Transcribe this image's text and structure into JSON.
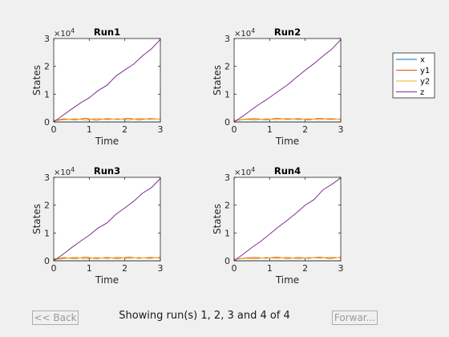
{
  "chart_data": [
    {
      "type": "line",
      "title": "Run1",
      "xlabel": "Time",
      "ylabel": "States",
      "xlim": [
        0,
        3
      ],
      "ylim": [
        0,
        30000
      ],
      "xticks": [
        "0",
        "1",
        "2",
        "3"
      ],
      "yticks": [
        "0",
        "1",
        "2",
        "3"
      ],
      "exponent_label": "×10",
      "exponent_power": "4",
      "grid": false,
      "series": [
        {
          "name": "x",
          "color": "#0072BD",
          "x": [
            0,
            0.5,
            1,
            1.5,
            2,
            2.5,
            3
          ],
          "y": [
            0,
            0,
            0,
            0,
            0,
            0,
            0
          ]
        },
        {
          "name": "y1",
          "color": "#D95319",
          "x": [
            0,
            0.3,
            0.6,
            0.9,
            1.2,
            1.5,
            1.8,
            2.1,
            2.4,
            2.7,
            3
          ],
          "y": [
            500,
            1100,
            800,
            1300,
            700,
            1200,
            900,
            1300,
            800,
            1200,
            1000
          ]
        },
        {
          "name": "y2",
          "color": "#EDB120",
          "x": [
            0,
            0.3,
            0.6,
            0.9,
            1.2,
            1.5,
            1.8,
            2.1,
            2.4,
            2.7,
            3
          ],
          "y": [
            400,
            800,
            1200,
            700,
            1300,
            800,
            1200,
            700,
            1300,
            900,
            1100
          ]
        },
        {
          "name": "z",
          "color": "#7E2F8E",
          "x": [
            0,
            0.25,
            0.5,
            0.75,
            1,
            1.25,
            1.5,
            1.75,
            2,
            2.25,
            2.5,
            2.75,
            3
          ],
          "y": [
            0,
            2300,
            4600,
            6800,
            8700,
            11300,
            13200,
            16500,
            18700,
            20800,
            23800,
            26300,
            29700
          ]
        }
      ]
    },
    {
      "type": "line",
      "title": "Run2",
      "xlabel": "Time",
      "ylabel": "States",
      "xlim": [
        0,
        3
      ],
      "ylim": [
        0,
        30000
      ],
      "xticks": [
        "0",
        "1",
        "2",
        "3"
      ],
      "yticks": [
        "0",
        "1",
        "2",
        "3"
      ],
      "exponent_label": "×10",
      "exponent_power": "4",
      "grid": false,
      "series": [
        {
          "name": "x",
          "color": "#0072BD",
          "x": [
            0,
            0.5,
            1,
            1.5,
            2,
            2.5,
            3
          ],
          "y": [
            0,
            0,
            0,
            0,
            0,
            0,
            0
          ]
        },
        {
          "name": "y1",
          "color": "#D95319",
          "x": [
            0,
            0.3,
            0.6,
            0.9,
            1.2,
            1.5,
            1.8,
            2.1,
            2.4,
            2.7,
            3
          ],
          "y": [
            500,
            1000,
            1200,
            800,
            1300,
            900,
            1200,
            800,
            1300,
            900,
            1100
          ]
        },
        {
          "name": "y2",
          "color": "#EDB120",
          "x": [
            0,
            0.3,
            0.6,
            0.9,
            1.2,
            1.5,
            1.8,
            2.1,
            2.4,
            2.7,
            3
          ],
          "y": [
            400,
            900,
            700,
            1200,
            800,
            1300,
            800,
            1200,
            800,
            1300,
            900
          ]
        },
        {
          "name": "z",
          "color": "#7E2F8E",
          "x": [
            0,
            0.25,
            0.5,
            0.75,
            1,
            1.25,
            1.5,
            1.75,
            2,
            2.25,
            2.5,
            2.75,
            3
          ],
          "y": [
            0,
            2100,
            4500,
            6700,
            8800,
            11100,
            13300,
            16000,
            18600,
            21000,
            23700,
            26200,
            29600
          ]
        }
      ]
    },
    {
      "type": "line",
      "title": "Run3",
      "xlabel": "Time",
      "ylabel": "States",
      "xlim": [
        0,
        3
      ],
      "ylim": [
        0,
        30000
      ],
      "xticks": [
        "0",
        "1",
        "2",
        "3"
      ],
      "yticks": [
        "0",
        "1",
        "2",
        "3"
      ],
      "exponent_label": "×10",
      "exponent_power": "4",
      "grid": false,
      "series": [
        {
          "name": "x",
          "color": "#0072BD",
          "x": [
            0,
            0.5,
            1,
            1.5,
            2,
            2.5,
            3
          ],
          "y": [
            0,
            0,
            0,
            0,
            0,
            0,
            0
          ]
        },
        {
          "name": "y1",
          "color": "#D95319",
          "x": [
            0,
            0.3,
            0.6,
            0.9,
            1.2,
            1.5,
            1.8,
            2.1,
            2.4,
            2.7,
            3
          ],
          "y": [
            600,
            1100,
            800,
            1300,
            800,
            1200,
            800,
            1300,
            900,
            1200,
            1000
          ]
        },
        {
          "name": "y2",
          "color": "#EDB120",
          "x": [
            0,
            0.3,
            0.6,
            0.9,
            1.2,
            1.5,
            1.8,
            2.1,
            2.4,
            2.7,
            3
          ],
          "y": [
            400,
            800,
            1300,
            700,
            1200,
            800,
            1300,
            800,
            1200,
            800,
            1300
          ]
        },
        {
          "name": "z",
          "color": "#7E2F8E",
          "x": [
            0,
            0.25,
            0.5,
            0.75,
            1,
            1.25,
            1.5,
            1.75,
            2,
            2.25,
            2.5,
            2.75,
            3
          ],
          "y": [
            0,
            2200,
            4700,
            7000,
            9200,
            11800,
            13600,
            16700,
            19000,
            21400,
            24300,
            26300,
            29600
          ]
        }
      ]
    },
    {
      "type": "line",
      "title": "Run4",
      "xlabel": "Time",
      "ylabel": "States",
      "xlim": [
        0,
        3
      ],
      "ylim": [
        0,
        30000
      ],
      "xticks": [
        "0",
        "1",
        "2",
        "3"
      ],
      "yticks": [
        "0",
        "1",
        "2",
        "3"
      ],
      "exponent_label": "×10",
      "exponent_power": "4",
      "grid": false,
      "series": [
        {
          "name": "x",
          "color": "#0072BD",
          "x": [
            0,
            0.5,
            1,
            1.5,
            2,
            2.5,
            3
          ],
          "y": [
            0,
            0,
            0,
            0,
            0,
            0,
            0
          ]
        },
        {
          "name": "y1",
          "color": "#D95319",
          "x": [
            0,
            0.3,
            0.6,
            0.9,
            1.2,
            1.5,
            1.8,
            2.1,
            2.4,
            2.7,
            3
          ],
          "y": [
            500,
            1000,
            1200,
            900,
            1300,
            800,
            1200,
            900,
            1300,
            800,
            1300
          ]
        },
        {
          "name": "y2",
          "color": "#EDB120",
          "x": [
            0,
            0.3,
            0.6,
            0.9,
            1.2,
            1.5,
            1.8,
            2.1,
            2.4,
            2.7,
            3
          ],
          "y": [
            400,
            900,
            700,
            1200,
            800,
            1300,
            700,
            1200,
            900,
            1300,
            1100
          ]
        },
        {
          "name": "z",
          "color": "#7E2F8E",
          "x": [
            0,
            0.25,
            0.5,
            0.75,
            1,
            1.25,
            1.5,
            1.75,
            2,
            2.25,
            2.5,
            2.75,
            3
          ],
          "y": [
            0,
            2300,
            4800,
            7000,
            9600,
            12200,
            14600,
            17200,
            20000,
            22000,
            25500,
            27500,
            29800
          ]
        }
      ]
    }
  ],
  "legend": {
    "placement": "right",
    "entries": [
      {
        "name": "x",
        "color": "#0072BD"
      },
      {
        "name": "y1",
        "color": "#D95319"
      },
      {
        "name": "y2",
        "color": "#EDB120"
      },
      {
        "name": "z",
        "color": "#7E2F8E"
      }
    ]
  },
  "controls": {
    "back_label": "<< Back",
    "forward_label": "Forwar...",
    "status_text": "Showing run(s) 1, 2, 3 and 4 of 4"
  }
}
